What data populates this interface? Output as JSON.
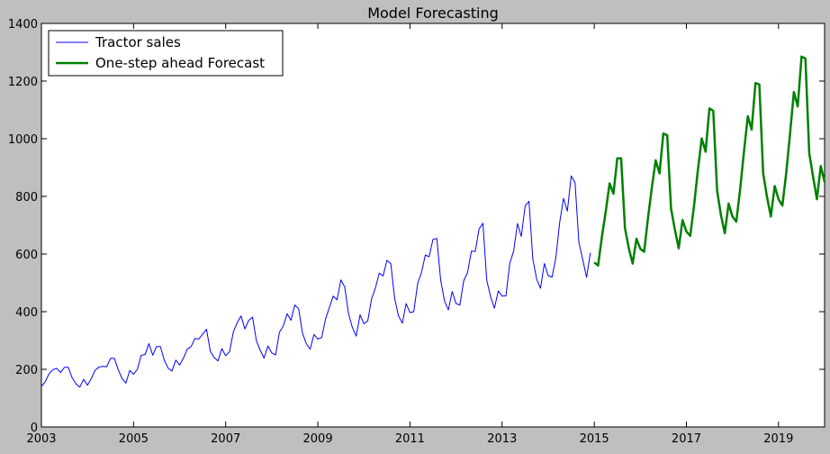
{
  "chart_data": {
    "type": "line",
    "title": "Model Forecasting",
    "xlabel": "",
    "ylabel": "",
    "xlim": [
      2003,
      2020
    ],
    "ylim": [
      0,
      1400
    ],
    "x_ticks": [
      "2003",
      "2005",
      "2007",
      "2009",
      "2011",
      "2013",
      "2015",
      "2017",
      "2019"
    ],
    "y_ticks": [
      "0",
      "200",
      "400",
      "600",
      "800",
      "1000",
      "1200",
      "1400"
    ],
    "grid": false,
    "legend_position": "top-left",
    "series": [
      {
        "name": "Tractor sales",
        "color": "#0000ff",
        "start": "2003-01",
        "frequency": "monthly",
        "values": [
          141,
          157,
          185,
          199,
          203,
          189,
          207,
          207,
          171,
          150,
          138,
          165,
          145,
          168,
          197,
          208,
          210,
          209,
          238,
          238,
          199,
          168,
          152,
          196,
          183,
          200,
          249,
          251,
          289,
          249,
          279,
          279,
          232,
          204,
          194,
          232,
          215,
          239,
          270,
          279,
          307,
          305,
          322,
          339,
          263,
          241,
          229,
          272,
          247,
          261,
          330,
          362,
          385,
          340,
          370,
          381,
          299,
          266,
          239,
          281,
          257,
          250,
          329,
          350,
          393,
          370,
          423,
          410,
          326,
          289,
          270,
          321,
          305,
          310,
          374,
          414,
          454,
          441,
          510,
          486,
          393,
          345,
          315,
          389,
          358,
          368,
          444,
          482,
          534,
          524,
          578,
          567,
          447,
          386,
          360,
          428,
          397,
          400,
          498,
          536,
          596,
          591,
          651,
          654,
          509,
          437,
          406,
          470,
          428,
          423,
          507,
          536,
          610,
          609,
          687,
          707,
          509,
          452,
          412,
          472,
          454,
          455,
          568,
          610,
          706,
          661,
          767,
          783,
          583,
          513,
          481,
          567,
          525,
          520,
          587,
          710,
          793,
          749,
          871,
          848,
          640,
          581,
          519,
          605
        ]
      },
      {
        "name": "One-step ahead Forecast",
        "color": "#008000",
        "start": "2015-01",
        "frequency": "monthly",
        "values": [
          571,
          560,
          660,
          748,
          845,
          809,
          932,
          932,
          690,
          620,
          567,
          653,
          618,
          608,
          725,
          830,
          925,
          880,
          1018,
          1012,
          758,
          685,
          620,
          718,
          678,
          663,
          768,
          892,
          1001,
          955,
          1105,
          1097,
          820,
          735,
          672,
          775,
          730,
          712,
          825,
          955,
          1078,
          1032,
          1193,
          1188,
          880,
          798,
          730,
          836,
          790,
          768,
          880,
          1018,
          1162,
          1112,
          1285,
          1278,
          950,
          868,
          790,
          905,
          850
        ]
      }
    ]
  }
}
